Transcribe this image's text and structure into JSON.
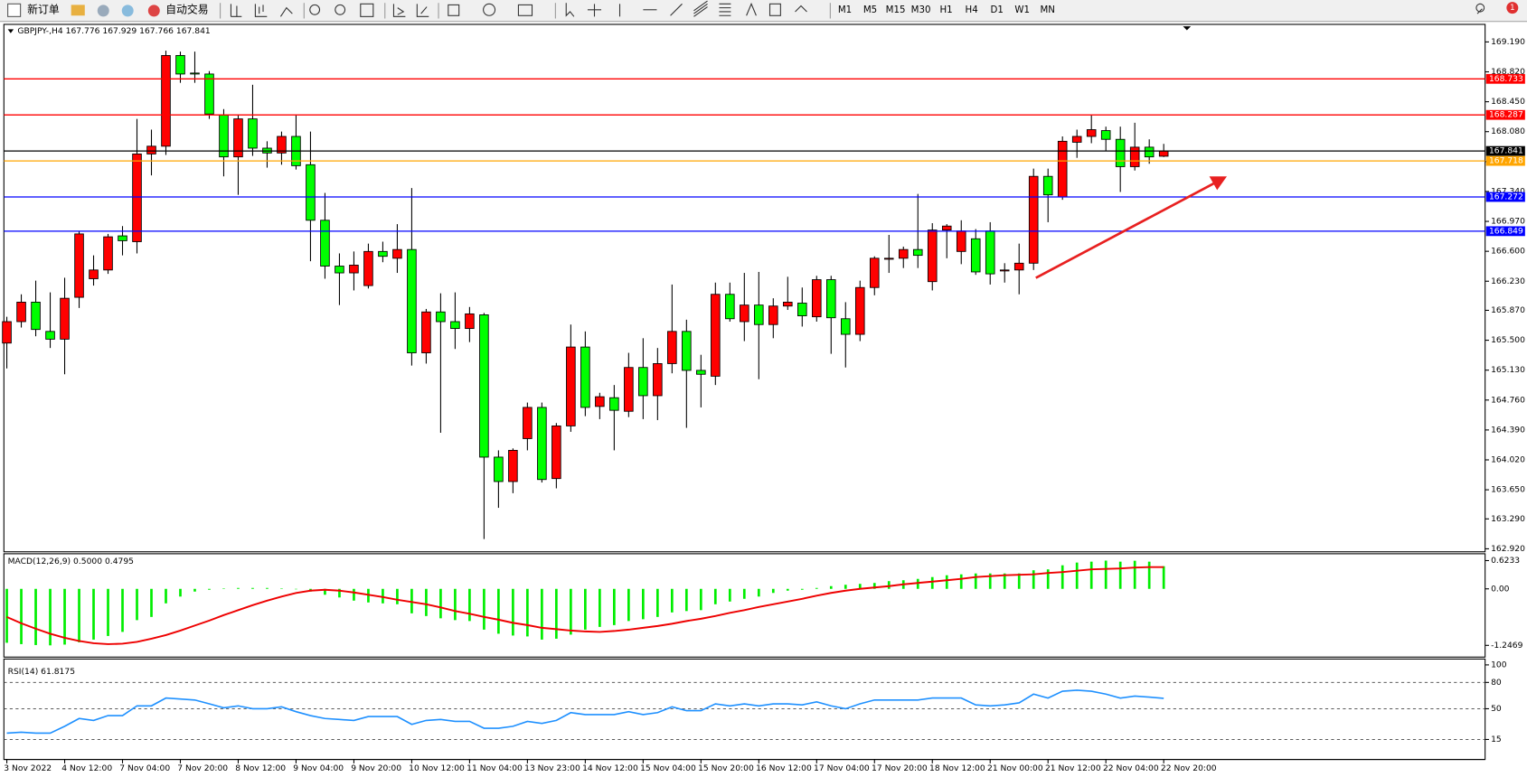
{
  "toolbar": {
    "new_order": "新订单",
    "auto_trading": "自动交易",
    "timeframes": [
      "M1",
      "M5",
      "M15",
      "M30",
      "H1",
      "H4",
      "D1",
      "W1",
      "MN"
    ],
    "notifications": 1
  },
  "chart_data": [
    {
      "type": "candlestick",
      "title": "GBPJPY-,H4 167.776 167.929 167.766 167.841",
      "up_color": "#ff0000",
      "down_color": "#00ff00",
      "categories": [
        "3 Nov 2022",
        null,
        null,
        null,
        "4 Nov 12:00",
        null,
        null,
        null,
        "7 Nov 04:00",
        null,
        null,
        null,
        "7 Nov 20:00",
        null,
        null,
        null,
        "8 Nov 12:00",
        null,
        null,
        null,
        "9 Nov 04:00",
        null,
        null,
        null,
        "9 Nov 20:00",
        null,
        null,
        null,
        "10 Nov 12:00",
        null,
        null,
        null,
        "11 Nov 04:00",
        null,
        null,
        null,
        "13 Nov 23:00",
        null,
        null,
        null,
        "14 Nov 12:00",
        null,
        null,
        null,
        "15 Nov 04:00",
        null,
        null,
        null,
        "15 Nov 20:00",
        null,
        null,
        null,
        "16 Nov 12:00",
        null,
        null,
        null,
        "17 Nov 04:00",
        null,
        null,
        null,
        "17 Nov 20:00",
        null,
        null,
        null,
        "18 Nov 12:00",
        null,
        null,
        null,
        "21 Nov 00:00",
        null,
        null,
        null,
        "21 Nov 12:00",
        null,
        null,
        null,
        "22 Nov 04:00",
        null,
        null,
        null,
        "22 Nov 20:00"
      ],
      "open": [
        165.465,
        165.73,
        165.971,
        165.609,
        165.513,
        166.031,
        166.261,
        166.369,
        166.791,
        166.719,
        167.804,
        167.9,
        169.022,
        168.805,
        168.793,
        168.286,
        167.768,
        168.238,
        167.876,
        167.816,
        168.021,
        167.671,
        166.984,
        166.417,
        166.333,
        166.176,
        166.598,
        166.514,
        166.622,
        165.344,
        165.85,
        165.73,
        165.645,
        165.814,
        164.054,
        163.752,
        164.283,
        164.669,
        163.789,
        164.44,
        165.416,
        164.681,
        164.789,
        164.621,
        165.163,
        164.814,
        165.211,
        165.609,
        165.127,
        165.055,
        166.068,
        165.73,
        165.935,
        165.694,
        165.923,
        165.959,
        165.79,
        166.249,
        165.766,
        165.573,
        166.152,
        166.514,
        166.514,
        166.622,
        166.225,
        166.863,
        166.598,
        166.755,
        166.851,
        166.369,
        166.369,
        166.453,
        167.527,
        167.273,
        167.949,
        168.021,
        168.093,
        167.985,
        167.647,
        167.888,
        167.776
      ],
      "high": [
        165.79,
        166.068,
        166.237,
        166.092,
        166.273,
        166.851,
        166.55,
        166.815,
        166.912,
        168.238,
        168.105,
        169.082,
        169.07,
        169.07,
        168.829,
        168.359,
        168.286,
        168.66,
        167.961,
        168.081,
        168.286,
        168.081,
        167.322,
        166.574,
        166.598,
        166.695,
        166.719,
        166.936,
        167.382,
        165.887,
        166.08,
        166.092,
        165.911,
        165.838,
        164.138,
        164.162,
        164.729,
        164.729,
        164.476,
        165.694,
        165.609,
        164.85,
        164.946,
        165.344,
        165.525,
        165.404,
        166.189,
        165.754,
        165.32,
        166.213,
        166.213,
        166.333,
        166.345,
        166.019,
        166.285,
        166.152,
        166.297,
        166.297,
        165.971,
        166.237,
        166.538,
        166.803,
        166.658,
        167.31,
        166.948,
        166.936,
        166.984,
        166.875,
        166.96,
        166.453,
        166.695,
        167.623,
        167.623,
        168.021,
        168.105,
        168.286,
        168.142,
        168.142,
        168.19,
        167.985,
        167.929
      ],
      "low": [
        165.151,
        165.657,
        165.549,
        165.404,
        165.079,
        165.899,
        166.176,
        166.321,
        166.55,
        166.574,
        167.539,
        167.792,
        168.684,
        168.684,
        168.238,
        167.527,
        167.298,
        167.78,
        167.635,
        167.671,
        167.611,
        166.477,
        166.261,
        165.935,
        166.116,
        166.14,
        166.465,
        166.333,
        165.187,
        165.211,
        164.355,
        165.392,
        165.477,
        163.041,
        163.427,
        163.608,
        164.138,
        163.74,
        163.668,
        164.367,
        164.561,
        164.524,
        164.138,
        164.549,
        164.524,
        164.512,
        165.091,
        164.416,
        164.669,
        164.946,
        165.73,
        165.489,
        165.018,
        165.525,
        165.875,
        165.669,
        165.73,
        165.332,
        165.163,
        165.489,
        166.056,
        166.333,
        166.393,
        166.393,
        166.116,
        166.514,
        166.441,
        166.309,
        166.189,
        166.213,
        166.068,
        166.369,
        166.96,
        167.237,
        167.756,
        167.937,
        167.84,
        167.334,
        167.599,
        167.683,
        167.766
      ],
      "close": [
        165.73,
        165.971,
        165.633,
        165.513,
        166.019,
        166.815,
        166.369,
        166.779,
        166.731,
        167.804,
        167.9,
        169.022,
        168.793,
        168.793,
        168.298,
        167.768,
        168.238,
        167.876,
        167.816,
        168.021,
        167.659,
        166.984,
        166.417,
        166.333,
        166.429,
        166.598,
        166.538,
        166.622,
        165.344,
        165.85,
        165.73,
        165.645,
        165.826,
        164.054,
        163.752,
        164.138,
        164.669,
        163.777,
        164.44,
        165.416,
        164.669,
        164.801,
        164.633,
        165.163,
        164.814,
        165.211,
        165.609,
        165.127,
        165.079,
        166.068,
        165.766,
        165.935,
        165.694,
        165.923,
        165.971,
        165.802,
        166.249,
        165.778,
        165.573,
        166.152,
        166.514,
        166.514,
        166.622,
        166.55,
        166.863,
        166.912,
        166.851,
        166.345,
        166.321,
        166.369,
        166.453,
        167.527,
        167.298,
        167.961,
        168.021,
        168.105,
        167.985,
        167.647,
        167.888,
        167.768,
        167.841
      ],
      "ylim": [
        162.883,
        169.395
      ],
      "yticks": [
        {
          "value": 169.19,
          "label": "169.190"
        },
        {
          "value": 168.82,
          "label": "168.820"
        },
        {
          "value": 168.45,
          "label": "168.450"
        },
        {
          "value": 168.08,
          "label": "168.080"
        },
        {
          "value": 167.71,
          "label": "167.710"
        },
        {
          "value": 167.34,
          "label": "167.340"
        },
        {
          "value": 166.97,
          "label": "166.970"
        },
        {
          "value": 166.6,
          "label": "166.600"
        },
        {
          "value": 166.23,
          "label": "166.230"
        },
        {
          "value": 165.87,
          "label": "165.870"
        },
        {
          "value": 165.5,
          "label": "165.500"
        },
        {
          "value": 165.13,
          "label": "165.130"
        },
        {
          "value": 164.76,
          "label": "164.760"
        },
        {
          "value": 164.39,
          "label": "164.390"
        },
        {
          "value": 164.02,
          "label": "164.020"
        },
        {
          "value": 163.65,
          "label": "163.650"
        },
        {
          "value": 163.29,
          "label": "163.290"
        },
        {
          "value": 162.92,
          "label": "162.920"
        }
      ],
      "levels": [
        {
          "value": 168.733,
          "color": "#ff0000"
        },
        {
          "value": 168.287,
          "color": "#ff0000"
        },
        {
          "value": 167.841,
          "color": "#000000"
        },
        {
          "value": 167.718,
          "color": "#ffa500"
        },
        {
          "value": 167.272,
          "color": "#0000ff"
        },
        {
          "value": 166.849,
          "color": "#0000ff"
        }
      ]
    },
    {
      "type": "macd",
      "title": "MACD(12,26,9) 0.5000 0.4795",
      "ylim": [
        -1.484,
        0.753
      ],
      "yticks": [
        0.6233,
        {
          "value": 0,
          "label": "0.00"
        },
        -1.2469
      ],
      "series": [
        {
          "color": "#00ee00",
          "values": [
            -1.19,
            -1.22,
            -1.24,
            -1.2469,
            -1.23,
            -1.18,
            -1.12,
            -1.04,
            -0.95,
            -0.69,
            -0.62,
            -0.32,
            -0.17,
            -0.06,
            -0.02,
            0.01,
            0.02,
            0.02,
            0.02,
            0.01,
            -0.01,
            -0.06,
            -0.13,
            -0.19,
            -0.26,
            -0.3,
            -0.32,
            -0.34,
            -0.54,
            -0.6,
            -0.65,
            -0.69,
            -0.71,
            -0.9,
            -0.99,
            -1.03,
            -1.05,
            -1.12,
            -1.1,
            -1.01,
            -0.9,
            -0.84,
            -0.8,
            -0.71,
            -0.67,
            -0.62,
            -0.52,
            -0.49,
            -0.47,
            -0.34,
            -0.28,
            -0.22,
            -0.17,
            -0.09,
            -0.04,
            -0.02,
            0.02,
            0.06,
            0.09,
            0.11,
            0.13,
            0.17,
            0.19,
            0.22,
            0.26,
            0.3,
            0.32,
            0.34,
            0.34,
            0.34,
            0.34,
            0.41,
            0.43,
            0.52,
            0.58,
            0.6,
            0.6233,
            0.6,
            0.62,
            0.6,
            0.5
          ]
        },
        {
          "color": "#ee0000",
          "values": [
            -0.62,
            -0.76,
            -0.88,
            -0.99,
            -1.08,
            -1.15,
            -1.2,
            -1.22,
            -1.21,
            -1.17,
            -1.1,
            -1.02,
            -0.92,
            -0.81,
            -0.7,
            -0.58,
            -0.47,
            -0.36,
            -0.26,
            -0.17,
            -0.09,
            -0.04,
            -0.02,
            -0.04,
            -0.08,
            -0.13,
            -0.18,
            -0.24,
            -0.29,
            -0.34,
            -0.41,
            -0.49,
            -0.55,
            -0.62,
            -0.68,
            -0.75,
            -0.8,
            -0.86,
            -0.89,
            -0.92,
            -0.94,
            -0.95,
            -0.93,
            -0.9,
            -0.86,
            -0.82,
            -0.77,
            -0.71,
            -0.66,
            -0.6,
            -0.53,
            -0.47,
            -0.4,
            -0.34,
            -0.28,
            -0.22,
            -0.15,
            -0.09,
            -0.04,
            0.0,
            0.03,
            0.06,
            0.1,
            0.13,
            0.16,
            0.19,
            0.22,
            0.26,
            0.28,
            0.3,
            0.31,
            0.32,
            0.35,
            0.37,
            0.4,
            0.43,
            0.44,
            0.45,
            0.47,
            0.48,
            0.4795
          ]
        }
      ]
    },
    {
      "type": "line",
      "title": "RSI(14) 61.8175",
      "ylim": [
        0,
        100
      ],
      "yticks": [
        100,
        80,
        50,
        15
      ],
      "grid": true,
      "series": [
        {
          "color": "#1e90ff",
          "values": [
            22.2,
            23.3,
            22.2,
            22.2,
            30.0,
            38.9,
            36.7,
            42.2,
            42.2,
            53.3,
            53.3,
            62.2,
            61.1,
            60.0,
            55.6,
            51.1,
            53.3,
            50.0,
            50.0,
            52.2,
            46.7,
            42.2,
            38.9,
            37.8,
            36.7,
            41.1,
            41.1,
            41.1,
            32.2,
            36.7,
            37.8,
            35.6,
            35.6,
            27.8,
            27.8,
            30.0,
            35.6,
            33.3,
            36.7,
            45.6,
            43.3,
            43.3,
            43.3,
            46.7,
            43.3,
            45.6,
            52.2,
            47.8,
            47.8,
            55.6,
            53.3,
            55.6,
            53.3,
            55.6,
            55.6,
            54.4,
            57.8,
            53.3,
            50.0,
            55.6,
            60.0,
            60.0,
            60.0,
            60.0,
            62.2,
            62.2,
            62.2,
            54.4,
            53.3,
            54.4,
            56.7,
            66.7,
            62.2,
            70.0,
            71.1,
            70.0,
            66.7,
            62.2,
            64.4,
            63.3,
            61.8175
          ]
        }
      ]
    }
  ]
}
